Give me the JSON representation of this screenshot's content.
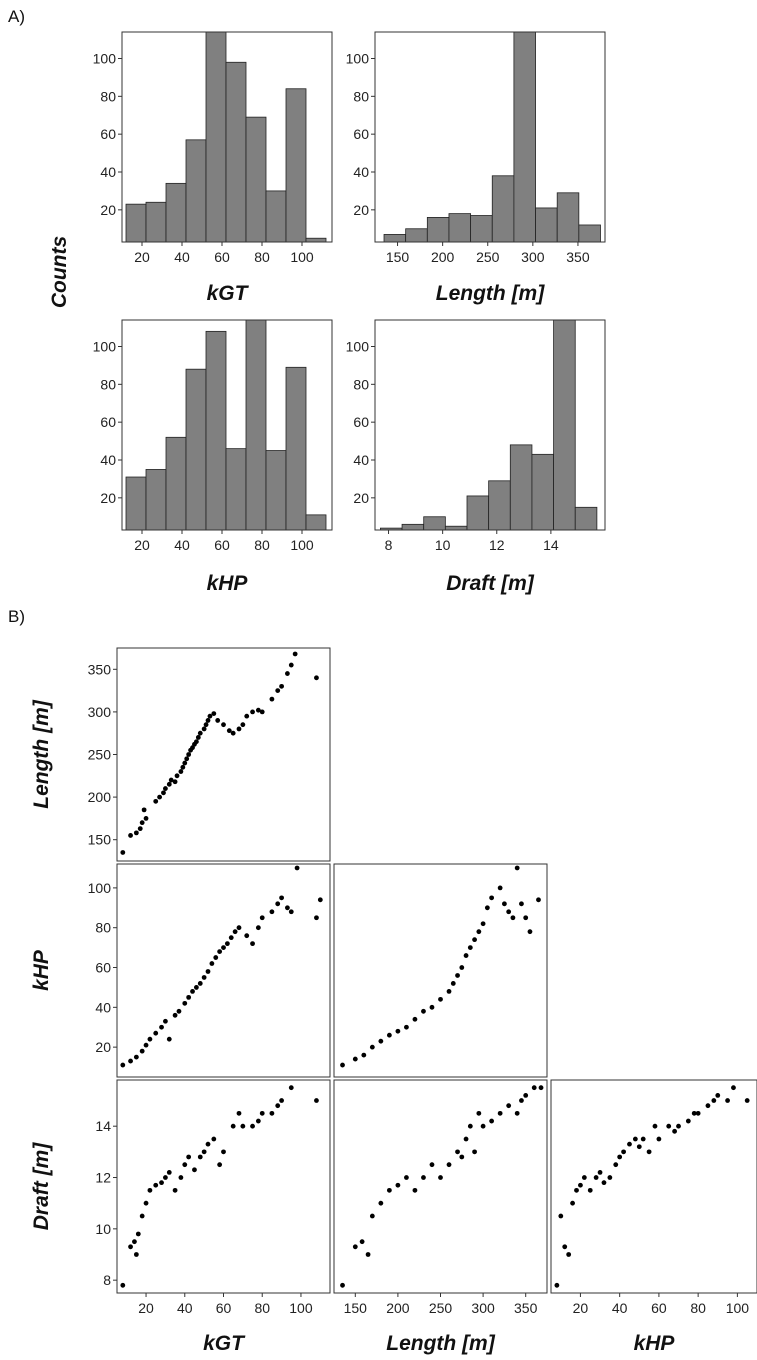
{
  "panel_labels": [
    "A)",
    "B)"
  ],
  "shared_labels": {
    "counts": "Counts"
  },
  "chart_data": [
    {
      "type": "bar",
      "panel": "A",
      "xlabel": "kGT",
      "ylabel": "Counts",
      "xlim": [
        10,
        115
      ],
      "ylim": [
        3,
        114
      ],
      "xticks": [
        20,
        40,
        60,
        80,
        100
      ],
      "yticks": [
        20,
        40,
        60,
        80,
        100
      ],
      "bin_edges": [
        12,
        22,
        32,
        42,
        52,
        62,
        72,
        82,
        92,
        102,
        112
      ],
      "values": [
        23,
        24,
        34,
        57,
        114,
        98,
        69,
        30,
        84,
        5
      ]
    },
    {
      "type": "bar",
      "panel": "A",
      "xlabel": "Length [m]",
      "ylabel": "",
      "xlim": [
        125,
        380
      ],
      "ylim": [
        3,
        114
      ],
      "xticks": [
        150,
        200,
        250,
        300,
        350
      ],
      "yticks": [
        20,
        40,
        60,
        80,
        100
      ],
      "bin_edges": [
        135,
        159,
        183,
        207,
        231,
        255,
        279,
        303,
        327,
        351,
        375
      ],
      "values": [
        7,
        10,
        16,
        18,
        17,
        38,
        114,
        21,
        29,
        12
      ]
    },
    {
      "type": "bar",
      "panel": "A",
      "xlabel": "kHP",
      "ylabel": "",
      "xlim": [
        10,
        115
      ],
      "ylim": [
        3,
        114
      ],
      "xticks": [
        20,
        40,
        60,
        80,
        100
      ],
      "yticks": [
        20,
        40,
        60,
        80,
        100
      ],
      "bin_edges": [
        12,
        22,
        32,
        42,
        52,
        62,
        72,
        82,
        92,
        102,
        112
      ],
      "values": [
        31,
        35,
        52,
        88,
        108,
        46,
        114,
        45,
        89,
        11
      ]
    },
    {
      "type": "bar",
      "panel": "A",
      "xlabel": "Draft [m]",
      "ylabel": "",
      "xlim": [
        7.5,
        16
      ],
      "ylim": [
        3,
        114
      ],
      "xticks": [
        8,
        10,
        12,
        14
      ],
      "yticks": [
        20,
        40,
        60,
        80,
        100
      ],
      "bin_edges": [
        7.7,
        8.5,
        9.3,
        10.1,
        10.9,
        11.7,
        12.5,
        13.3,
        14.1,
        14.9,
        15.7
      ],
      "values": [
        4,
        6,
        10,
        5,
        21,
        29,
        48,
        43,
        114,
        15
      ]
    },
    {
      "type": "scatter",
      "panel": "B",
      "xlabel": "",
      "ylabel": "Length [m]",
      "xlim": [
        5,
        115
      ],
      "ylim": [
        125,
        375
      ],
      "xticks": [],
      "yticks": [
        150,
        200,
        250,
        300,
        350
      ],
      "points": [
        [
          8,
          135
        ],
        [
          12,
          155
        ],
        [
          15,
          158
        ],
        [
          17,
          163
        ],
        [
          18,
          170
        ],
        [
          20,
          175
        ],
        [
          19,
          185
        ],
        [
          25,
          195
        ],
        [
          27,
          200
        ],
        [
          29,
          205
        ],
        [
          30,
          210
        ],
        [
          32,
          215
        ],
        [
          33,
          220
        ],
        [
          35,
          218
        ],
        [
          36,
          225
        ],
        [
          38,
          230
        ],
        [
          39,
          235
        ],
        [
          40,
          240
        ],
        [
          41,
          245
        ],
        [
          42,
          250
        ],
        [
          43,
          255
        ],
        [
          44,
          258
        ],
        [
          45,
          262
        ],
        [
          46,
          265
        ],
        [
          47,
          270
        ],
        [
          48,
          275
        ],
        [
          50,
          280
        ],
        [
          51,
          285
        ],
        [
          52,
          290
        ],
        [
          53,
          295
        ],
        [
          55,
          298
        ],
        [
          57,
          290
        ],
        [
          60,
          285
        ],
        [
          63,
          278
        ],
        [
          65,
          275
        ],
        [
          68,
          280
        ],
        [
          70,
          285
        ],
        [
          72,
          295
        ],
        [
          75,
          300
        ],
        [
          78,
          302
        ],
        [
          80,
          300
        ],
        [
          85,
          315
        ],
        [
          88,
          325
        ],
        [
          90,
          330
        ],
        [
          93,
          345
        ],
        [
          95,
          355
        ],
        [
          97,
          368
        ],
        [
          108,
          340
        ]
      ]
    },
    {
      "type": "scatter",
      "panel": "B",
      "xlabel": "",
      "ylabel": "kHP",
      "xlim": [
        5,
        115
      ],
      "ylim": [
        5,
        112
      ],
      "xticks": [],
      "yticks": [
        20,
        40,
        60,
        80,
        100
      ],
      "points": [
        [
          8,
          11
        ],
        [
          12,
          13
        ],
        [
          15,
          15
        ],
        [
          18,
          18
        ],
        [
          20,
          21
        ],
        [
          22,
          24
        ],
        [
          25,
          27
        ],
        [
          28,
          30
        ],
        [
          30,
          33
        ],
        [
          32,
          24
        ],
        [
          35,
          36
        ],
        [
          37,
          38
        ],
        [
          40,
          42
        ],
        [
          42,
          45
        ],
        [
          44,
          48
        ],
        [
          46,
          50
        ],
        [
          48,
          52
        ],
        [
          50,
          55
        ],
        [
          52,
          58
        ],
        [
          54,
          62
        ],
        [
          56,
          65
        ],
        [
          58,
          68
        ],
        [
          60,
          70
        ],
        [
          62,
          72
        ],
        [
          64,
          75
        ],
        [
          66,
          78
        ],
        [
          68,
          80
        ],
        [
          72,
          76
        ],
        [
          75,
          72
        ],
        [
          78,
          80
        ],
        [
          80,
          85
        ],
        [
          85,
          88
        ],
        [
          88,
          92
        ],
        [
          90,
          95
        ],
        [
          93,
          90
        ],
        [
          95,
          88
        ],
        [
          98,
          110
        ],
        [
          108,
          85
        ],
        [
          110,
          94
        ]
      ]
    },
    {
      "type": "scatter",
      "panel": "B",
      "xlabel": "",
      "ylabel": "",
      "xlim": [
        125,
        375
      ],
      "ylim": [
        5,
        112
      ],
      "xticks": [],
      "yticks": [],
      "points": [
        [
          135,
          11
        ],
        [
          150,
          14
        ],
        [
          160,
          16
        ],
        [
          170,
          20
        ],
        [
          180,
          23
        ],
        [
          190,
          26
        ],
        [
          200,
          28
        ],
        [
          210,
          30
        ],
        [
          220,
          34
        ],
        [
          230,
          38
        ],
        [
          240,
          40
        ],
        [
          250,
          44
        ],
        [
          260,
          48
        ],
        [
          265,
          52
        ],
        [
          270,
          56
        ],
        [
          275,
          60
        ],
        [
          280,
          66
        ],
        [
          285,
          70
        ],
        [
          290,
          74
        ],
        [
          295,
          78
        ],
        [
          300,
          82
        ],
        [
          305,
          90
        ],
        [
          310,
          95
        ],
        [
          320,
          100
        ],
        [
          325,
          92
        ],
        [
          330,
          88
        ],
        [
          335,
          85
        ],
        [
          340,
          110
        ],
        [
          345,
          92
        ],
        [
          350,
          85
        ],
        [
          355,
          78
        ],
        [
          365,
          94
        ]
      ]
    },
    {
      "type": "scatter",
      "panel": "B",
      "xlabel": "kGT",
      "ylabel": "Draft [m]",
      "xlim": [
        5,
        115
      ],
      "ylim": [
        7.5,
        15.8
      ],
      "xticks": [
        20,
        40,
        60,
        80,
        100
      ],
      "yticks": [
        8,
        10,
        12,
        14
      ],
      "points": [
        [
          8,
          7.8
        ],
        [
          12,
          9.3
        ],
        [
          14,
          9.5
        ],
        [
          15,
          9.0
        ],
        [
          16,
          9.8
        ],
        [
          18,
          10.5
        ],
        [
          20,
          11.0
        ],
        [
          22,
          11.5
        ],
        [
          25,
          11.7
        ],
        [
          28,
          11.8
        ],
        [
          30,
          12.0
        ],
        [
          32,
          12.2
        ],
        [
          35,
          11.5
        ],
        [
          38,
          12.0
        ],
        [
          40,
          12.5
        ],
        [
          42,
          12.8
        ],
        [
          45,
          12.3
        ],
        [
          48,
          12.8
        ],
        [
          50,
          13.0
        ],
        [
          52,
          13.3
        ],
        [
          55,
          13.5
        ],
        [
          58,
          12.5
        ],
        [
          60,
          13.0
        ],
        [
          65,
          14.0
        ],
        [
          68,
          14.5
        ],
        [
          70,
          14.0
        ],
        [
          75,
          14.0
        ],
        [
          78,
          14.2
        ],
        [
          80,
          14.5
        ],
        [
          85,
          14.5
        ],
        [
          88,
          14.8
        ],
        [
          90,
          15.0
        ],
        [
          95,
          15.5
        ],
        [
          108,
          15.0
        ]
      ]
    },
    {
      "type": "scatter",
      "panel": "B",
      "xlabel": "Length [m]",
      "ylabel": "",
      "xlim": [
        125,
        375
      ],
      "ylim": [
        7.5,
        15.8
      ],
      "xticks": [
        150,
        200,
        250,
        300,
        350
      ],
      "yticks": [],
      "points": [
        [
          135,
          7.8
        ],
        [
          150,
          9.3
        ],
        [
          158,
          9.5
        ],
        [
          165,
          9.0
        ],
        [
          170,
          10.5
        ],
        [
          180,
          11.0
        ],
        [
          190,
          11.5
        ],
        [
          200,
          11.7
        ],
        [
          210,
          12.0
        ],
        [
          220,
          11.5
        ],
        [
          230,
          12.0
        ],
        [
          240,
          12.5
        ],
        [
          250,
          12.0
        ],
        [
          260,
          12.5
        ],
        [
          270,
          13.0
        ],
        [
          275,
          12.8
        ],
        [
          280,
          13.5
        ],
        [
          285,
          14.0
        ],
        [
          290,
          13.0
        ],
        [
          295,
          14.5
        ],
        [
          300,
          14.0
        ],
        [
          310,
          14.2
        ],
        [
          320,
          14.5
        ],
        [
          330,
          14.8
        ],
        [
          340,
          14.5
        ],
        [
          345,
          15.0
        ],
        [
          350,
          15.2
        ],
        [
          360,
          15.5
        ],
        [
          368,
          15.5
        ]
      ]
    },
    {
      "type": "scatter",
      "panel": "B",
      "xlabel": "kHP",
      "ylabel": "",
      "xlim": [
        5,
        110
      ],
      "ylim": [
        7.5,
        15.8
      ],
      "xticks": [
        20,
        40,
        60,
        80,
        100
      ],
      "yticks": [],
      "points": [
        [
          8,
          7.8
        ],
        [
          10,
          10.5
        ],
        [
          12,
          9.3
        ],
        [
          14,
          9.0
        ],
        [
          16,
          11.0
        ],
        [
          18,
          11.5
        ],
        [
          20,
          11.7
        ],
        [
          22,
          12.0
        ],
        [
          25,
          11.5
        ],
        [
          28,
          12.0
        ],
        [
          30,
          12.2
        ],
        [
          32,
          11.8
        ],
        [
          35,
          12.0
        ],
        [
          38,
          12.5
        ],
        [
          40,
          12.8
        ],
        [
          42,
          13.0
        ],
        [
          45,
          13.3
        ],
        [
          48,
          13.5
        ],
        [
          50,
          13.2
        ],
        [
          52,
          13.5
        ],
        [
          55,
          13.0
        ],
        [
          58,
          14.0
        ],
        [
          60,
          13.5
        ],
        [
          65,
          14.0
        ],
        [
          68,
          13.8
        ],
        [
          70,
          14.0
        ],
        [
          75,
          14.2
        ],
        [
          78,
          14.5
        ],
        [
          80,
          14.5
        ],
        [
          85,
          14.8
        ],
        [
          88,
          15.0
        ],
        [
          90,
          15.2
        ],
        [
          95,
          15.0
        ],
        [
          98,
          15.5
        ],
        [
          105,
          15.0
        ]
      ]
    }
  ]
}
